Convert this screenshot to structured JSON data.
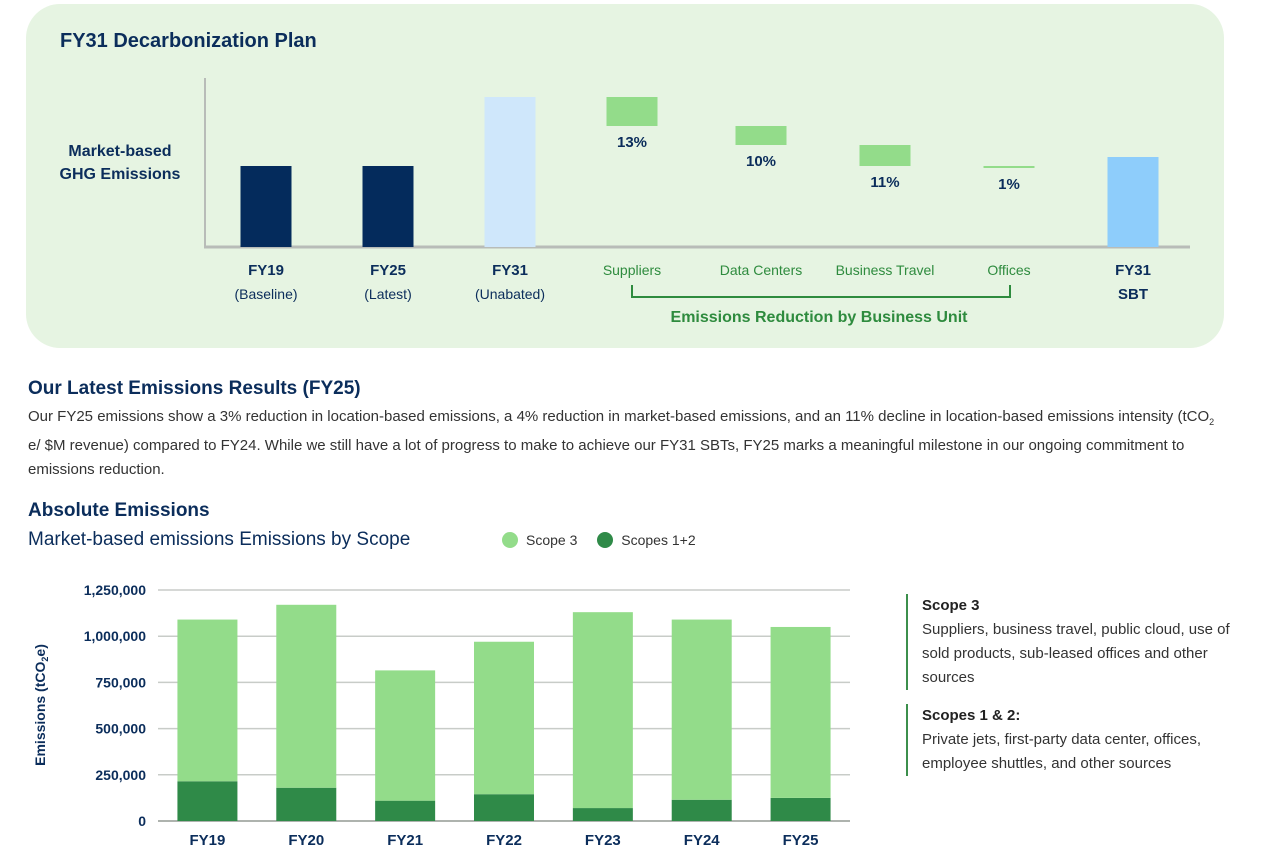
{
  "plan": {
    "title": "FY31 Decarbonization Plan",
    "ylabel_line1": "Market-based",
    "ylabel_line2": "GHG Emissions",
    "group_label": "Emissions Reduction by Business Unit",
    "colors": {
      "baseline": "#042b5c",
      "unabated": "#cfe7fb",
      "reduction": "#93dc8a",
      "sbt": "#8ecdfb",
      "green_text": "#2e8b3e",
      "navy_text": "#0b2d5b"
    }
  },
  "results": {
    "title": "Our Latest Emissions Results (FY25)",
    "text_1": "Our FY25 emissions show a 3% reduction in location-based emissions, a 4% reduction in market-based emissions, and an 11% decline in location-based emissions intensity (tCO",
    "text_sub": "2",
    "text_2": " e/ $M revenue) compared to FY24. While we still have a lot of progress to make to achieve our FY31 SBTs, FY25 marks a meaningful milestone in our ongoing commitment to emissions reduction."
  },
  "absolute": {
    "title": "Absolute Emissions",
    "subtitle": "Market-based emissions Emissions by Scope",
    "legend": [
      {
        "label": "Scope 3",
        "color": "#93dc8a"
      },
      {
        "label": "Scopes 1+2",
        "color": "#2f8a48"
      }
    ],
    "notes": [
      {
        "title": "Scope 3",
        "body": "Suppliers, business travel, public cloud, use of sold products, sub-leased offices and other sources"
      },
      {
        "title": "Scopes 1 & 2:",
        "body": "Private jets, first-party data center, offices, employee shuttles, and other sources"
      }
    ]
  },
  "chart_data": [
    {
      "type": "bar",
      "title": "FY31 Decarbonization Plan",
      "ylabel": "Market-based GHG Emissions",
      "bars": [
        {
          "label": "FY19",
          "sublabel": "(Baseline)",
          "kind": "total",
          "start": 0,
          "end": 81
        },
        {
          "label": "FY25",
          "sublabel": "(Latest)",
          "kind": "total",
          "start": 0,
          "end": 81
        },
        {
          "label": "FY31",
          "sublabel": "(Unabated)",
          "kind": "unabated",
          "start": 0,
          "end": 150
        },
        {
          "label": "Suppliers",
          "sublabel": "",
          "kind": "reduction",
          "start": 150,
          "end": 121,
          "value_label": "13%"
        },
        {
          "label": "Data Centers",
          "sublabel": "",
          "kind": "reduction",
          "start": 121,
          "end": 102,
          "value_label": "10%"
        },
        {
          "label": "Business Travel",
          "sublabel": "",
          "kind": "reduction",
          "start": 102,
          "end": 81,
          "value_label": "11%"
        },
        {
          "label": "Offices",
          "sublabel": "",
          "kind": "reduction",
          "start": 81,
          "end": 79,
          "value_label": "1%"
        },
        {
          "label": "FY31",
          "sublabel": "SBT",
          "kind": "sbt",
          "start": 0,
          "end": 90
        }
      ],
      "ylim": [
        0,
        168
      ],
      "grid": false
    },
    {
      "type": "bar",
      "stacked": true,
      "ylabel": "Emissions (tCO",
      "ylabel_sub": "2",
      "ylabel_end": "e)",
      "categories": [
        "FY19",
        "FY20",
        "FY21",
        "FY22",
        "FY23",
        "FY24",
        "FY25"
      ],
      "series": [
        {
          "name": "Scopes 1+2",
          "values": [
            215000,
            180000,
            110000,
            145000,
            70000,
            115000,
            125000
          ]
        },
        {
          "name": "Scope 3",
          "values": [
            875000,
            990000,
            705000,
            825000,
            1060000,
            975000,
            925000
          ]
        }
      ],
      "yticks": [
        "0",
        "250,000",
        "500,000",
        "750,000",
        "1,000,000",
        "1,250,000"
      ],
      "ylim": [
        0,
        1250000
      ],
      "grid": true
    }
  ]
}
